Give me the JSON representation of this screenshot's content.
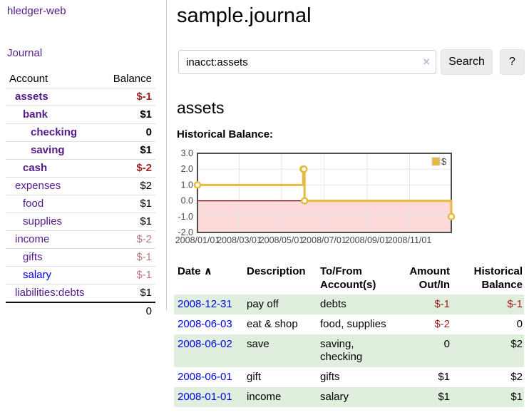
{
  "app": {
    "title": "hledger-web"
  },
  "sidebar": {
    "journal_label": "Journal",
    "accounts_table": {
      "headers": {
        "account": "Account",
        "balance": "Balance"
      },
      "rows": [
        {
          "name": "assets",
          "indent": 1,
          "bold": true,
          "link_color": "purple",
          "balance": "$-1",
          "balance_class": "neg"
        },
        {
          "name": "bank",
          "indent": 2,
          "bold": true,
          "link_color": "purple",
          "balance": "$1",
          "balance_class": "pos"
        },
        {
          "name": "checking",
          "indent": 3,
          "bold": true,
          "link_color": "purple",
          "balance": "0",
          "balance_class": "pos"
        },
        {
          "name": "saving",
          "indent": 3,
          "bold": true,
          "link_color": "purple",
          "balance": "$1",
          "balance_class": "pos"
        },
        {
          "name": "cash",
          "indent": 2,
          "bold": true,
          "link_color": "purple",
          "balance": "$-2",
          "balance_class": "neg"
        },
        {
          "name": "expenses",
          "indent": 1,
          "bold": false,
          "link_color": "purple",
          "balance": "$2",
          "balance_class": "pos"
        },
        {
          "name": "food",
          "indent": 2,
          "bold": false,
          "link_color": "purple",
          "balance": "$1",
          "balance_class": "pos"
        },
        {
          "name": "supplies",
          "indent": 2,
          "bold": false,
          "link_color": "purple",
          "balance": "$1",
          "balance_class": "pos"
        },
        {
          "name": "income",
          "indent": 1,
          "bold": false,
          "link_color": "purple",
          "balance": "$-2",
          "balance_class": "neg-muted"
        },
        {
          "name": "gifts",
          "indent": 2,
          "bold": false,
          "link_color": "purple",
          "balance": "$-1",
          "balance_class": "neg-muted"
        },
        {
          "name": "salary",
          "indent": 2,
          "bold": false,
          "link_color": "blue",
          "balance": "$-1",
          "balance_class": "neg-muted"
        },
        {
          "name": "liabilities:debts",
          "indent": 1,
          "bold": false,
          "link_color": "purple",
          "balance": "$1",
          "balance_class": "pos"
        }
      ],
      "total": "0"
    }
  },
  "main": {
    "title": "sample.journal",
    "search": {
      "value": "inacct:assets",
      "clear_icon": "×",
      "button_label": "Search",
      "help_label": "?"
    },
    "account_heading": "assets",
    "chart_heading": "Historical Balance:"
  },
  "chart_data": {
    "type": "line",
    "title": "Historical Balance",
    "step": true,
    "legend": {
      "label": "$",
      "position": "top-right"
    },
    "x_range": [
      "2008/01/01",
      "2008/12/31"
    ],
    "x_ticks": [
      "2008/01/01",
      "2008/03/01",
      "2008/05/01",
      "2008/07/01",
      "2008/09/01",
      "2008/11/01"
    ],
    "y_ticks": [
      3.0,
      2.0,
      1.0,
      0.0,
      -1.0,
      -2.0
    ],
    "ylim": [
      -2,
      3
    ],
    "grid": true,
    "series": [
      {
        "name": "$",
        "color": "#e6ba3c",
        "points": [
          [
            "2008/01/01",
            1
          ],
          [
            "2008/06/01",
            2
          ],
          [
            "2008/06/02",
            2
          ],
          [
            "2008/06/03",
            0
          ],
          [
            "2008/12/31",
            -1
          ]
        ]
      }
    ],
    "negative_region_color": "#fcdada",
    "zero_line_color": "#8b0000",
    "border_color": "#4d4d4d",
    "grid_color": "#e4e4e4",
    "tick_label_color": "#474747"
  },
  "register": {
    "headers": {
      "date": "Date",
      "sort_icon": "∧",
      "description": "Description",
      "accounts": "To/From Account(s)",
      "amount": "Amount Out/In",
      "balance": "Historical Balance"
    },
    "rows": [
      {
        "date": "2008-12-31",
        "description": "pay off",
        "accounts": "debts",
        "amount": "$-1",
        "amount_negative": true,
        "balance": "$-1",
        "balance_negative": true
      },
      {
        "date": "2008-06-03",
        "description": "eat & shop",
        "accounts": "food, supplies",
        "amount": "$-2",
        "amount_negative": true,
        "balance": "0",
        "balance_negative": false
      },
      {
        "date": "2008-06-02",
        "description": "save",
        "accounts": "saving, checking",
        "amount": "0",
        "amount_negative": false,
        "balance": "$2",
        "balance_negative": false
      },
      {
        "date": "2008-06-01",
        "description": "gift",
        "accounts": "gifts",
        "amount": "$1",
        "amount_negative": false,
        "balance": "$2",
        "balance_negative": false
      },
      {
        "date": "2008-01-01",
        "description": "income",
        "accounts": "salary",
        "amount": "$1",
        "amount_negative": false,
        "balance": "$1",
        "balance_negative": false
      }
    ]
  }
}
